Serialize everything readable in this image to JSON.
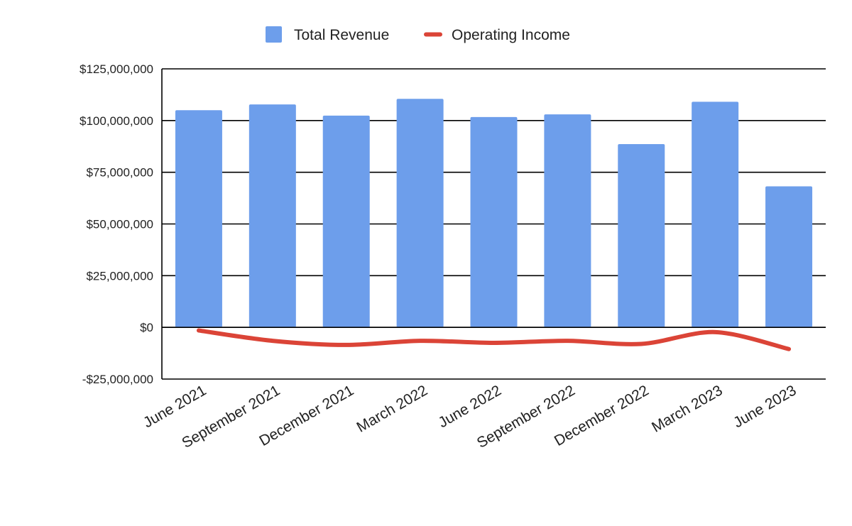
{
  "chart_data": {
    "type": "bar",
    "title": "",
    "xlabel": "",
    "ylabel": "",
    "categories": [
      "June 2021",
      "September 2021",
      "December 2021",
      "March 2022",
      "June 2022",
      "September 2022",
      "December 2022",
      "March 2023",
      "June 2023"
    ],
    "series": [
      {
        "name": "Total Revenue",
        "type": "bar",
        "color": "#6d9eeb",
        "values": [
          105000000,
          107800000,
          102400000,
          110500000,
          101700000,
          103000000,
          88600000,
          109100000,
          68200000
        ]
      },
      {
        "name": "Operating Income",
        "type": "line",
        "smooth": true,
        "color": "#db4437",
        "values": [
          -1500000,
          -6500000,
          -8500000,
          -6500000,
          -7500000,
          -6500000,
          -8000000,
          -2300000,
          -10500000
        ]
      }
    ],
    "ylim": [
      -25000000,
      125000000
    ],
    "yticks": [
      -25000000,
      0,
      25000000,
      50000000,
      75000000,
      100000000,
      125000000
    ],
    "ytick_labels": [
      "-$25,000,000",
      "$0",
      "$25,000,000",
      "$50,000,000",
      "$75,000,000",
      "$100,000,000",
      "$125,000,000"
    ],
    "grid": true,
    "legend": "top-center"
  }
}
